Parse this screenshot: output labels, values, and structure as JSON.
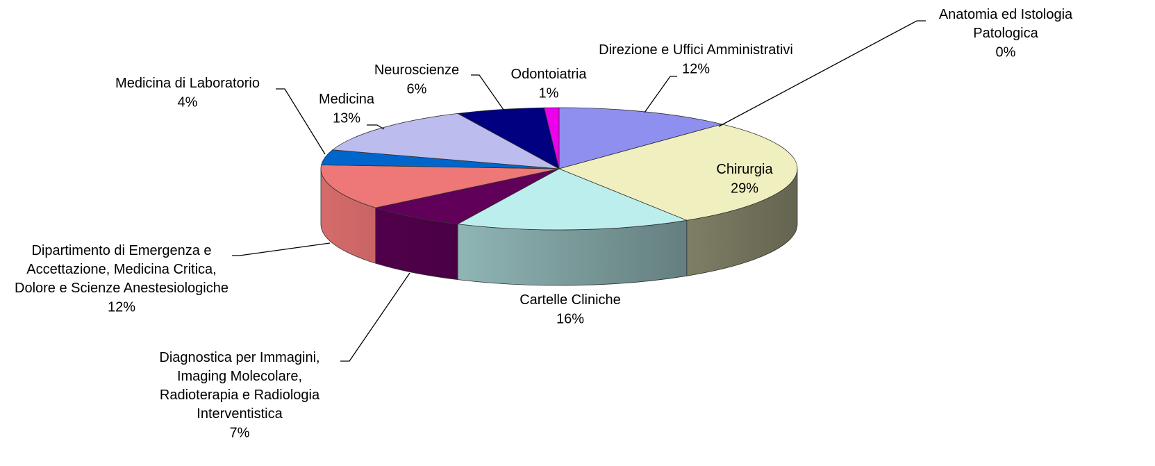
{
  "chart_data": {
    "type": "pie",
    "categories": [
      "Direzione e Uffici Amministrativi",
      "Anatomia ed Istologia Patologica",
      "Chirurgia",
      "Cartelle Cliniche",
      "Diagnostica per Immagini, Imaging Molecolare, Radioterapia e Radiologia Interventistica",
      "Dipartimento di Emergenza e Accettazione, Medicina Critica, Dolore e Scienze Anestesiologiche",
      "Medicina di Laboratorio",
      "Medicina",
      "Neuroscienze",
      "Odontoiatria"
    ],
    "values": [
      12,
      0,
      29,
      16,
      7,
      12,
      4,
      13,
      6,
      1
    ],
    "value_labels": [
      "12%",
      "0%",
      "29%",
      "16%",
      "7%",
      "12%",
      "4%",
      "13%",
      "6%",
      "1%"
    ],
    "colors": [
      "#8f8fef",
      "#a0306a",
      "#efefbf",
      "#bdeeee",
      "#600058",
      "#ee7777",
      "#0066cc",
      "#bcbcee",
      "#000080",
      "#ee00ee"
    ]
  }
}
